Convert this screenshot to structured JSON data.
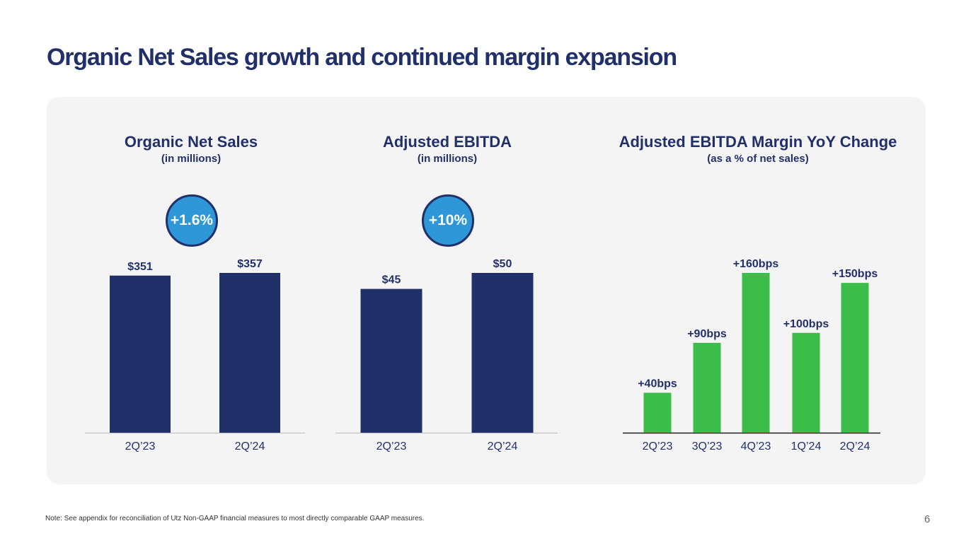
{
  "slide_title": "Organic Net Sales growth and continued margin expansion",
  "footnote": "Note: See appendix for reconciliation of Utz Non-GAAP financial measures to most directly comparable GAAP measures.",
  "page_number": "6",
  "colors": {
    "navy": "#22306a",
    "green": "#3cbd4a",
    "badge": "#2d97d8",
    "panel": "#f4f4f4"
  },
  "chart_data": [
    {
      "type": "bar",
      "title": "Organic Net Sales",
      "subtitle": "(in millions)",
      "categories": [
        "2Q’23",
        "2Q’24"
      ],
      "values": [
        351,
        357
      ],
      "data_labels": [
        "$351",
        "$357"
      ],
      "growth_badge": "+1.6%",
      "ylim": [
        0,
        357
      ],
      "bar_color": "#22306a"
    },
    {
      "type": "bar",
      "title": "Adjusted EBITDA",
      "subtitle": "(in millions)",
      "categories": [
        "2Q’23",
        "2Q’24"
      ],
      "values": [
        45,
        50
      ],
      "data_labels": [
        "$45",
        "$50"
      ],
      "growth_badge": "+10%",
      "ylim": [
        0,
        50
      ],
      "bar_color": "#22306a"
    },
    {
      "type": "bar",
      "title": "Adjusted EBITDA Margin YoY Change",
      "subtitle": "(as a % of net sales)",
      "categories": [
        "2Q’23",
        "3Q’23",
        "4Q’23",
        "1Q’24",
        "2Q’24"
      ],
      "values": [
        40,
        90,
        160,
        100,
        150
      ],
      "data_labels": [
        "+40bps",
        "+90bps",
        "+160bps",
        "+100bps",
        "+150bps"
      ],
      "ylim": [
        0,
        160
      ],
      "bar_color": "#3cbd4a"
    }
  ]
}
